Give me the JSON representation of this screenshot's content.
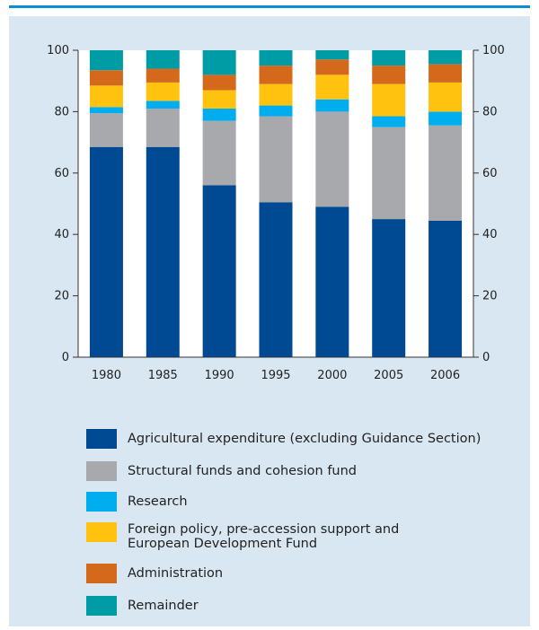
{
  "chart_data": {
    "type": "bar",
    "stacked": true,
    "categories": [
      "1980",
      "1985",
      "1990",
      "1995",
      "2000",
      "2005",
      "2006"
    ],
    "yticks": [
      "0",
      "20",
      "40",
      "60",
      "80",
      "100"
    ],
    "ylim": [
      0,
      100
    ],
    "grid": false,
    "legend_placement": "bottom",
    "series": [
      {
        "name": "Agricultural expenditure (excluding Guidance Section)",
        "color": "#004a93",
        "values": [
          68.5,
          68.5,
          56,
          50.5,
          49,
          45,
          44.5
        ]
      },
      {
        "name": "Structural funds and cohesion fund",
        "color": "#a7a9ac",
        "values": [
          11,
          12.5,
          21,
          28,
          31,
          30,
          31
        ]
      },
      {
        "name": "Research",
        "color": "#00aeef",
        "values": [
          2,
          2.5,
          4,
          3.5,
          4,
          3.5,
          4.5
        ]
      },
      {
        "name": "Foreign policy, pre-accession support and\nEuropean Development Fund",
        "color": "#ffc20e",
        "values": [
          7,
          6,
          6,
          7,
          8,
          10.5,
          9.5
        ]
      },
      {
        "name": "Administration",
        "color": "#d4691c",
        "values": [
          5,
          4.5,
          5,
          6,
          5,
          6,
          6
        ]
      },
      {
        "name": "Remainder",
        "color": "#009ca6",
        "values": [
          6.5,
          6,
          8,
          5,
          3,
          5,
          4.5
        ]
      }
    ]
  }
}
